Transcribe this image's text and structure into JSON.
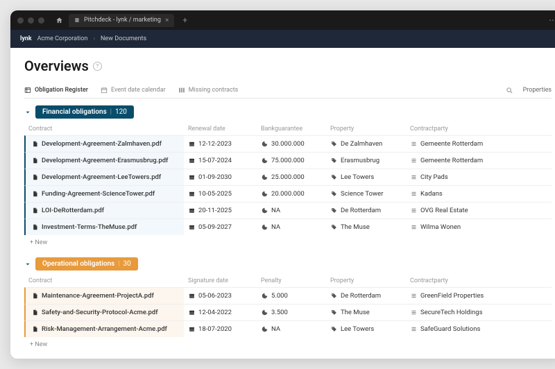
{
  "tab_title": "Pitchdeck - lynk / marketing",
  "brand": "lynk",
  "breadcrumbs": [
    "Acme Corporation",
    "New Documents"
  ],
  "page_title": "Overviews",
  "view_tabs": [
    {
      "label": "Obligation Register",
      "active": true
    },
    {
      "label": "Event date calendar",
      "active": false
    },
    {
      "label": "Missing contracts",
      "active": false
    }
  ],
  "properties_label": "Properties",
  "groups": [
    {
      "title": "Financial obligations",
      "count": "120",
      "color": "blue",
      "columns": [
        "Contract",
        "Renewal date",
        "Bankguarantee",
        "Property",
        "Contractparty"
      ],
      "rows": [
        {
          "contract": "Development-Agreement-Zalmhaven.pdf",
          "date": "12-12-2023",
          "bank": "30.000.000",
          "property": "De Zalmhaven",
          "party": "Gemeente Rotterdam"
        },
        {
          "contract": "Development-Agreement-Erasmusbrug.pdf",
          "date": "15-07-2024",
          "bank": "75.000.000",
          "property": "Erasmusbrug",
          "party": "Gemeente Rotterdam"
        },
        {
          "contract": "Development-Agreement-LeeTowers.pdf",
          "date": "01-09-2030",
          "bank": "25.000.000",
          "property": "Lee Towers",
          "party": "City Pads"
        },
        {
          "contract": "Funding-Agreement-ScienceTower.pdf",
          "date": "10-05-2025",
          "bank": "20.000.000",
          "property": "Science Tower",
          "party": "Kadans"
        },
        {
          "contract": "LOI-DeRotterdam.pdf",
          "date": "20-11-2025",
          "bank": "NA",
          "property": "De Rotterdam",
          "party": "OVG Real Estate"
        },
        {
          "contract": "Investment-Terms-TheMuse.pdf",
          "date": "05-09-2027",
          "bank": "NA",
          "property": "The Muse",
          "party": "Wilma Wonen"
        }
      ]
    },
    {
      "title": "Operational obligations",
      "count": "30",
      "color": "orange",
      "columns": [
        "Contract",
        "Signature  date",
        "Penalty",
        "Property",
        "Contractparty"
      ],
      "rows": [
        {
          "contract": "Maintenance-Agreement-ProjectA.pdf",
          "date": "05-06-2023",
          "bank": "5.000",
          "property": "De Rotterdam",
          "party": "GreenField Properties"
        },
        {
          "contract": "Safety-and-Security-Protocol-Acme.pdf",
          "date": "12-04-2022",
          "bank": "3.500",
          "property": "The Muse",
          "party": "SecureTech Holdings"
        },
        {
          "contract": "Risk-Management-Arrangement-Acme.pdf",
          "date": "18-07-2020",
          "bank": "NA",
          "property": "Lee Towers",
          "party": "SafeGuard Solutions"
        }
      ]
    }
  ],
  "add_new_label": "New"
}
